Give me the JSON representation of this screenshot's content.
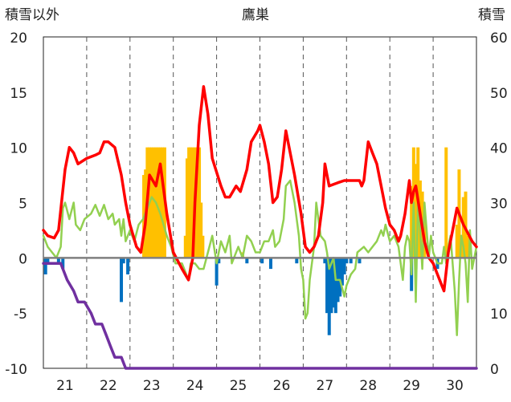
{
  "title": "鷹巣",
  "left_axis_label": "積雪以外",
  "right_axis_label": "積雪",
  "chart_data": {
    "type": "combo",
    "title": "鷹巣",
    "y_left": {
      "label": "積雪以外",
      "min": -10,
      "max": 20,
      "ticks": [
        20,
        15,
        10,
        5,
        0,
        -5,
        -10
      ]
    },
    "y_right": {
      "label": "積雪",
      "min": 0,
      "max": 60,
      "ticks": [
        60,
        50,
        40,
        30,
        20,
        10,
        0
      ]
    },
    "x_axis": {
      "min": 20.5,
      "max": 30.5,
      "day_ticks": [
        21,
        22,
        23,
        24,
        25,
        26,
        27,
        28,
        29,
        30
      ]
    },
    "grid": true,
    "colors": {
      "red_line": "#ff0000",
      "green_line": "#92d050",
      "purple_line": "#7030a0",
      "orange_bars": "#ffc000",
      "blue_bars": "#0070c0"
    },
    "red_line": [
      [
        20.5,
        2.5
      ],
      [
        20.6,
        2.0
      ],
      [
        20.75,
        1.8
      ],
      [
        20.85,
        2.5
      ],
      [
        21.0,
        8.0
      ],
      [
        21.1,
        10.0
      ],
      [
        21.2,
        9.5
      ],
      [
        21.3,
        8.5
      ],
      [
        21.5,
        9.0
      ],
      [
        21.7,
        9.3
      ],
      [
        21.8,
        9.5
      ],
      [
        21.9,
        10.5
      ],
      [
        22.0,
        10.5
      ],
      [
        22.15,
        10.0
      ],
      [
        22.3,
        7.5
      ],
      [
        22.4,
        5.0
      ],
      [
        22.5,
        3.0
      ],
      [
        22.65,
        1.0
      ],
      [
        22.75,
        0.5
      ],
      [
        22.85,
        3.0
      ],
      [
        22.95,
        7.5
      ],
      [
        23.1,
        6.5
      ],
      [
        23.2,
        8.5
      ],
      [
        23.35,
        4.0
      ],
      [
        23.5,
        0.5
      ],
      [
        23.7,
        -1.0
      ],
      [
        23.85,
        -2.0
      ],
      [
        23.95,
        0.0
      ],
      [
        24.0,
        5.0
      ],
      [
        24.1,
        12.0
      ],
      [
        24.2,
        15.5
      ],
      [
        24.3,
        13.0
      ],
      [
        24.4,
        9.0
      ],
      [
        24.6,
        6.5
      ],
      [
        24.7,
        5.5
      ],
      [
        24.8,
        5.5
      ],
      [
        24.95,
        6.5
      ],
      [
        25.05,
        6.0
      ],
      [
        25.2,
        8.0
      ],
      [
        25.3,
        10.5
      ],
      [
        25.45,
        11.5
      ],
      [
        25.5,
        12.0
      ],
      [
        25.6,
        10.5
      ],
      [
        25.7,
        8.5
      ],
      [
        25.8,
        5.0
      ],
      [
        25.9,
        5.5
      ],
      [
        26.0,
        8.0
      ],
      [
        26.1,
        11.5
      ],
      [
        26.2,
        9.5
      ],
      [
        26.3,
        7.5
      ],
      [
        26.45,
        4.0
      ],
      [
        26.55,
        1.0
      ],
      [
        26.65,
        0.5
      ],
      [
        26.75,
        1.0
      ],
      [
        26.85,
        2.0
      ],
      [
        26.95,
        5.0
      ],
      [
        27.0,
        8.5
      ],
      [
        27.05,
        7.5
      ],
      [
        27.1,
        6.5
      ],
      [
        27.3,
        6.8
      ],
      [
        27.45,
        7.0
      ],
      [
        27.6,
        7.0
      ],
      [
        27.8,
        7.0
      ],
      [
        27.85,
        6.5
      ],
      [
        27.9,
        7.0
      ],
      [
        28.0,
        10.5
      ],
      [
        28.1,
        9.5
      ],
      [
        28.2,
        8.5
      ],
      [
        28.3,
        6.5
      ],
      [
        28.4,
        4.5
      ],
      [
        28.5,
        3.0
      ],
      [
        28.6,
        2.5
      ],
      [
        28.7,
        1.5
      ],
      [
        28.75,
        2.0
      ],
      [
        28.85,
        4.0
      ],
      [
        28.95,
        7.0
      ],
      [
        29.0,
        5.0
      ],
      [
        29.05,
        6.0
      ],
      [
        29.1,
        6.5
      ],
      [
        29.2,
        4.0
      ],
      [
        29.3,
        1.5
      ],
      [
        29.4,
        0.0
      ],
      [
        29.5,
        -0.5
      ],
      [
        29.6,
        -1.5
      ],
      [
        29.7,
        -2.5
      ],
      [
        29.75,
        -3.0
      ],
      [
        29.85,
        0.5
      ],
      [
        29.95,
        2.5
      ],
      [
        30.05,
        4.5
      ],
      [
        30.2,
        3.0
      ],
      [
        30.4,
        1.5
      ],
      [
        30.5,
        1.0
      ]
    ],
    "green_line": [
      [
        20.5,
        2.0
      ],
      [
        20.6,
        1.0
      ],
      [
        20.7,
        0.5
      ],
      [
        20.8,
        0.0
      ],
      [
        20.9,
        1.0
      ],
      [
        20.95,
        4.5
      ],
      [
        21.0,
        5.0
      ],
      [
        21.1,
        3.5
      ],
      [
        21.2,
        5.0
      ],
      [
        21.25,
        3.0
      ],
      [
        21.35,
        2.5
      ],
      [
        21.45,
        3.5
      ],
      [
        21.6,
        4.0
      ],
      [
        21.7,
        4.8
      ],
      [
        21.8,
        3.8
      ],
      [
        21.9,
        4.8
      ],
      [
        22.0,
        3.5
      ],
      [
        22.1,
        4.0
      ],
      [
        22.15,
        3.0
      ],
      [
        22.25,
        3.5
      ],
      [
        22.3,
        2.0
      ],
      [
        22.35,
        3.5
      ],
      [
        22.4,
        1.5
      ],
      [
        22.5,
        2.5
      ],
      [
        22.6,
        1.5
      ],
      [
        22.7,
        3.0
      ],
      [
        22.8,
        3.5
      ],
      [
        22.9,
        4.5
      ],
      [
        23.0,
        5.5
      ],
      [
        23.1,
        5.0
      ],
      [
        23.2,
        4.0
      ],
      [
        23.35,
        2.0
      ],
      [
        23.45,
        1.0
      ],
      [
        23.55,
        -0.5
      ],
      [
        23.7,
        -0.5
      ],
      [
        23.8,
        -1.5
      ],
      [
        23.85,
        -2.0
      ],
      [
        23.9,
        -0.5
      ],
      [
        24.0,
        -0.5
      ],
      [
        24.1,
        -1.0
      ],
      [
        24.2,
        -1.0
      ],
      [
        24.3,
        0.5
      ],
      [
        24.4,
        2.0
      ],
      [
        24.5,
        -0.5
      ],
      [
        24.6,
        1.5
      ],
      [
        24.7,
        0.5
      ],
      [
        24.8,
        2.0
      ],
      [
        24.85,
        -0.5
      ],
      [
        24.9,
        0.0
      ],
      [
        25.0,
        1.0
      ],
      [
        25.1,
        0.0
      ],
      [
        25.2,
        2.0
      ],
      [
        25.3,
        1.5
      ],
      [
        25.4,
        0.5
      ],
      [
        25.5,
        0.5
      ],
      [
        25.6,
        1.5
      ],
      [
        25.7,
        1.5
      ],
      [
        25.8,
        2.5
      ],
      [
        25.85,
        1.0
      ],
      [
        25.95,
        1.5
      ],
      [
        26.05,
        3.5
      ],
      [
        26.1,
        6.5
      ],
      [
        26.2,
        7.0
      ],
      [
        26.3,
        5.0
      ],
      [
        26.4,
        2.0
      ],
      [
        26.45,
        -1.0
      ],
      [
        26.5,
        -2.0
      ],
      [
        26.55,
        -5.5
      ],
      [
        26.6,
        -5.0
      ],
      [
        26.65,
        -2.0
      ],
      [
        26.75,
        1.0
      ],
      [
        26.8,
        5.0
      ],
      [
        26.9,
        2.0
      ],
      [
        27.0,
        1.5
      ],
      [
        27.05,
        0.5
      ],
      [
        27.1,
        -1.0
      ],
      [
        27.2,
        0.0
      ],
      [
        27.25,
        -2.0
      ],
      [
        27.35,
        -2.0
      ],
      [
        27.45,
        -3.5
      ],
      [
        27.5,
        -2.5
      ],
      [
        27.6,
        -1.5
      ],
      [
        27.7,
        -1.0
      ],
      [
        27.75,
        0.5
      ],
      [
        27.9,
        1.0
      ],
      [
        28.0,
        0.5
      ],
      [
        28.1,
        1.0
      ],
      [
        28.2,
        1.5
      ],
      [
        28.3,
        2.5
      ],
      [
        28.35,
        2.0
      ],
      [
        28.4,
        3.0
      ],
      [
        28.5,
        1.5
      ],
      [
        28.6,
        2.0
      ],
      [
        28.7,
        1.0
      ],
      [
        28.75,
        -0.5
      ],
      [
        28.8,
        -2.0
      ],
      [
        28.85,
        1.0
      ],
      [
        28.9,
        2.0
      ],
      [
        28.95,
        1.5
      ],
      [
        29.0,
        -1.5
      ],
      [
        29.05,
        5.0
      ],
      [
        29.1,
        -4.0
      ],
      [
        29.15,
        5.0
      ],
      [
        29.2,
        2.5
      ],
      [
        29.25,
        -1.0
      ],
      [
        29.3,
        5.0
      ],
      [
        29.4,
        0.0
      ],
      [
        29.45,
        2.0
      ],
      [
        29.5,
        0.5
      ],
      [
        29.6,
        -0.5
      ],
      [
        29.7,
        -0.5
      ],
      [
        29.75,
        1.0
      ],
      [
        29.8,
        -0.5
      ],
      [
        29.85,
        1.0
      ],
      [
        29.9,
        2.0
      ],
      [
        30.0,
        -3.0
      ],
      [
        30.05,
        -7.0
      ],
      [
        30.1,
        -2.0
      ],
      [
        30.15,
        2.0
      ],
      [
        30.2,
        1.0
      ],
      [
        30.25,
        -0.5
      ],
      [
        30.3,
        -4.0
      ],
      [
        30.35,
        2.5
      ],
      [
        30.4,
        -1.0
      ],
      [
        30.5,
        1.0
      ]
    ],
    "purple_line": [
      [
        20.5,
        -0.5
      ],
      [
        20.75,
        -0.5
      ],
      [
        20.9,
        -0.5
      ],
      [
        21.05,
        -2.0
      ],
      [
        21.2,
        -3.0
      ],
      [
        21.3,
        -4.0
      ],
      [
        21.45,
        -4.0
      ],
      [
        21.6,
        -5.0
      ],
      [
        21.7,
        -6.0
      ],
      [
        21.85,
        -6.0
      ],
      [
        21.95,
        -7.0
      ],
      [
        22.05,
        -8.0
      ],
      [
        22.15,
        -9.0
      ],
      [
        22.3,
        -9.0
      ],
      [
        22.4,
        -10.0
      ],
      [
        30.5,
        -10.0
      ]
    ],
    "orange_bars": [
      [
        22.82,
        7.5
      ],
      [
        22.86,
        8.0
      ],
      [
        22.9,
        10.0
      ],
      [
        22.95,
        10.0
      ],
      [
        23.0,
        10.0
      ],
      [
        23.05,
        10.0
      ],
      [
        23.1,
        10.0
      ],
      [
        23.15,
        10.0
      ],
      [
        23.2,
        10.0
      ],
      [
        23.25,
        10.0
      ],
      [
        23.3,
        10.0
      ],
      [
        23.78,
        2.0
      ],
      [
        23.82,
        9.0
      ],
      [
        23.86,
        10.0
      ],
      [
        23.9,
        10.0
      ],
      [
        23.95,
        10.0
      ],
      [
        24.0,
        10.0
      ],
      [
        24.05,
        10.0
      ],
      [
        24.1,
        10.0
      ],
      [
        24.14,
        5.0
      ],
      [
        24.18,
        2.0
      ],
      [
        25.1,
        0.5
      ],
      [
        29.0,
        6.5
      ],
      [
        29.05,
        10.0
      ],
      [
        29.1,
        8.5
      ],
      [
        29.15,
        10.0
      ],
      [
        29.2,
        7.0
      ],
      [
        29.25,
        6.0
      ],
      [
        29.3,
        3.5
      ],
      [
        29.8,
        10.0
      ],
      [
        30.05,
        3.0
      ],
      [
        30.1,
        8.0
      ],
      [
        30.15,
        1.5
      ],
      [
        30.2,
        5.5
      ],
      [
        30.25,
        6.0
      ],
      [
        30.3,
        2.0
      ]
    ],
    "blue_bars": [
      [
        20.55,
        -1.5
      ],
      [
        20.6,
        -0.5
      ],
      [
        20.85,
        -0.5
      ],
      [
        20.95,
        -1.0
      ],
      [
        22.3,
        -4.0
      ],
      [
        22.35,
        -0.5
      ],
      [
        22.45,
        -1.5
      ],
      [
        24.5,
        -2.5
      ],
      [
        24.55,
        -0.5
      ],
      [
        25.2,
        -0.5
      ],
      [
        25.55,
        -0.5
      ],
      [
        25.75,
        -1.0
      ],
      [
        26.35,
        -0.5
      ],
      [
        27.0,
        -0.5
      ],
      [
        27.05,
        -5.0
      ],
      [
        27.1,
        -7.0
      ],
      [
        27.15,
        -5.0
      ],
      [
        27.2,
        -4.5
      ],
      [
        27.25,
        -5.0
      ],
      [
        27.3,
        -4.0
      ],
      [
        27.35,
        -3.5
      ],
      [
        27.4,
        -2.5
      ],
      [
        27.45,
        -1.5
      ],
      [
        27.5,
        -0.5
      ],
      [
        27.6,
        -0.5
      ],
      [
        27.8,
        -0.5
      ],
      [
        29.0,
        -3.0
      ],
      [
        29.1,
        -1.0
      ],
      [
        29.6,
        -1.0
      ]
    ]
  }
}
